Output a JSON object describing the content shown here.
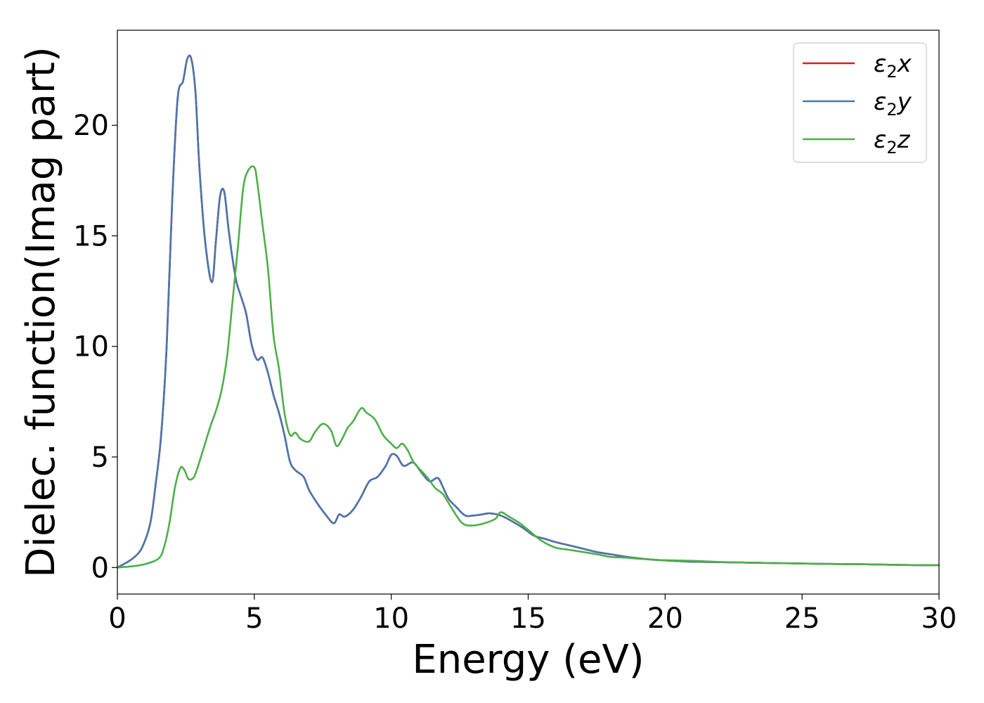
{
  "chart_data": {
    "type": "line",
    "title": "",
    "xlabel": "Energy (eV)",
    "ylabel": "Dielec. function(Imag part)",
    "xlim": [
      0,
      30
    ],
    "ylim": [
      -1.2,
      24.3
    ],
    "xticks": [
      0,
      5,
      10,
      15,
      20,
      25,
      30
    ],
    "yticks": [
      0,
      5,
      10,
      15,
      20
    ],
    "grid": false,
    "legend_position": "top-right",
    "series": [
      {
        "name": "ε₂x",
        "legend": {
          "base": "ε",
          "sub": "2",
          "suffix": "x"
        },
        "color": "#e41a1c",
        "x": [
          0,
          0.3,
          0.6,
          0.9,
          1.2,
          1.4,
          1.6,
          1.8,
          2.0,
          2.2,
          2.4,
          2.55,
          2.7,
          2.85,
          3.0,
          3.2,
          3.45,
          3.6,
          3.75,
          3.9,
          4.05,
          4.2,
          4.35,
          4.5,
          4.7,
          4.9,
          5.1,
          5.3,
          5.5,
          5.7,
          5.9,
          6.1,
          6.3,
          6.5,
          6.8,
          7.0,
          7.3,
          7.6,
          7.9,
          8.1,
          8.3,
          8.6,
          8.9,
          9.2,
          9.5,
          9.8,
          10.0,
          10.2,
          10.45,
          10.8,
          11.1,
          11.4,
          11.7,
          11.9,
          12.1,
          12.4,
          12.7,
          13.0,
          13.3,
          13.6,
          14.0,
          14.4,
          14.8,
          15.2,
          15.6,
          16.0,
          16.5,
          17.0,
          17.5,
          18.0,
          18.5,
          19.0,
          19.5,
          20.0,
          20.5,
          21.0,
          22.0,
          23.0,
          24.0,
          25.0,
          26.0,
          27.0,
          28.0,
          29.0,
          30.0
        ],
        "y": [
          0,
          0.2,
          0.45,
          0.9,
          2.0,
          3.8,
          6.0,
          10.0,
          16.5,
          21.2,
          22.0,
          23.0,
          23.0,
          21.5,
          18.0,
          14.8,
          12.9,
          14.8,
          16.8,
          17.0,
          15.4,
          14.0,
          12.9,
          12.3,
          11.5,
          10.1,
          9.4,
          9.5,
          8.8,
          7.8,
          7.0,
          6.0,
          4.8,
          4.4,
          4.1,
          3.5,
          2.9,
          2.4,
          2.0,
          2.4,
          2.3,
          2.6,
          3.2,
          3.9,
          4.1,
          4.6,
          5.1,
          5.05,
          4.6,
          4.75,
          4.3,
          3.9,
          4.05,
          3.6,
          3.1,
          2.7,
          2.35,
          2.35,
          2.4,
          2.45,
          2.35,
          2.1,
          1.8,
          1.45,
          1.3,
          1.15,
          1.0,
          0.85,
          0.7,
          0.6,
          0.5,
          0.42,
          0.36,
          0.32,
          0.29,
          0.26,
          0.24,
          0.22,
          0.2,
          0.18,
          0.16,
          0.15,
          0.13,
          0.11,
          0.1
        ]
      },
      {
        "name": "ε₂y",
        "legend": {
          "base": "ε",
          "sub": "2",
          "suffix": "y"
        },
        "color": "#4a76ad",
        "x": [
          0,
          0.3,
          0.6,
          0.9,
          1.2,
          1.4,
          1.6,
          1.8,
          2.0,
          2.2,
          2.4,
          2.55,
          2.7,
          2.85,
          3.0,
          3.2,
          3.45,
          3.6,
          3.75,
          3.9,
          4.05,
          4.2,
          4.35,
          4.5,
          4.7,
          4.9,
          5.1,
          5.3,
          5.5,
          5.7,
          5.9,
          6.1,
          6.3,
          6.5,
          6.8,
          7.0,
          7.3,
          7.6,
          7.9,
          8.1,
          8.3,
          8.6,
          8.9,
          9.2,
          9.5,
          9.8,
          10.0,
          10.2,
          10.45,
          10.8,
          11.1,
          11.4,
          11.7,
          11.9,
          12.1,
          12.4,
          12.7,
          13.0,
          13.3,
          13.6,
          14.0,
          14.4,
          14.8,
          15.2,
          15.6,
          16.0,
          16.5,
          17.0,
          17.5,
          18.0,
          18.5,
          19.0,
          19.5,
          20.0,
          20.5,
          21.0,
          22.0,
          23.0,
          24.0,
          25.0,
          26.0,
          27.0,
          28.0,
          29.0,
          30.0
        ],
        "y": [
          0,
          0.2,
          0.45,
          0.9,
          2.0,
          3.8,
          6.0,
          10.0,
          16.5,
          21.2,
          22.0,
          23.0,
          23.0,
          21.5,
          18.0,
          14.8,
          12.9,
          14.8,
          16.8,
          17.0,
          15.4,
          14.0,
          12.9,
          12.3,
          11.5,
          10.1,
          9.4,
          9.5,
          8.8,
          7.8,
          7.0,
          6.0,
          4.8,
          4.4,
          4.1,
          3.5,
          2.9,
          2.4,
          2.0,
          2.4,
          2.3,
          2.6,
          3.2,
          3.9,
          4.1,
          4.6,
          5.1,
          5.05,
          4.6,
          4.75,
          4.3,
          3.9,
          4.05,
          3.6,
          3.1,
          2.7,
          2.35,
          2.35,
          2.4,
          2.45,
          2.35,
          2.1,
          1.8,
          1.45,
          1.3,
          1.15,
          1.0,
          0.85,
          0.7,
          0.6,
          0.5,
          0.42,
          0.36,
          0.32,
          0.29,
          0.26,
          0.24,
          0.22,
          0.2,
          0.18,
          0.16,
          0.15,
          0.13,
          0.11,
          0.1
        ]
      },
      {
        "name": "ε₂z",
        "legend": {
          "base": "ε",
          "sub": "2",
          "suffix": "z"
        },
        "color": "#4daf4a",
        "x": [
          0,
          0.5,
          1.0,
          1.5,
          1.7,
          1.9,
          2.1,
          2.3,
          2.45,
          2.6,
          2.8,
          3.0,
          3.2,
          3.4,
          3.6,
          3.8,
          4.0,
          4.2,
          4.4,
          4.6,
          4.8,
          5.0,
          5.1,
          5.3,
          5.5,
          5.7,
          5.9,
          6.1,
          6.3,
          6.5,
          6.7,
          7.0,
          7.2,
          7.5,
          7.8,
          8.0,
          8.2,
          8.4,
          8.6,
          8.9,
          9.1,
          9.4,
          9.7,
          10.0,
          10.2,
          10.4,
          10.6,
          10.8,
          11.0,
          11.3,
          11.6,
          11.9,
          12.2,
          12.6,
          13.0,
          13.4,
          13.8,
          14.0,
          14.3,
          14.7,
          15.0,
          15.5,
          16.0,
          16.5,
          17.0,
          17.5,
          18.0,
          18.5,
          19.0,
          19.5,
          20.0,
          21.0,
          22.0,
          23.0,
          24.0,
          25.0,
          26.0,
          27.0,
          28.0,
          29.0,
          30.0
        ],
        "y": [
          0,
          0.05,
          0.15,
          0.4,
          0.9,
          2.0,
          3.6,
          4.5,
          4.4,
          4.0,
          4.1,
          4.8,
          5.6,
          6.4,
          7.1,
          8.0,
          9.5,
          12.0,
          14.5,
          17.2,
          18.0,
          18.1,
          17.5,
          15.5,
          13.5,
          10.5,
          9.0,
          7.0,
          6.0,
          6.1,
          5.8,
          5.7,
          6.1,
          6.5,
          6.2,
          5.5,
          5.8,
          6.3,
          6.6,
          7.2,
          7.0,
          6.7,
          6.0,
          5.6,
          5.4,
          5.6,
          5.3,
          4.8,
          4.5,
          4.1,
          3.6,
          3.3,
          2.7,
          2.0,
          1.9,
          2.0,
          2.2,
          2.5,
          2.3,
          2.0,
          1.7,
          1.2,
          0.9,
          0.8,
          0.7,
          0.6,
          0.48,
          0.45,
          0.4,
          0.36,
          0.33,
          0.3,
          0.25,
          0.22,
          0.2,
          0.18,
          0.16,
          0.15,
          0.13,
          0.11,
          0.1
        ]
      }
    ]
  }
}
